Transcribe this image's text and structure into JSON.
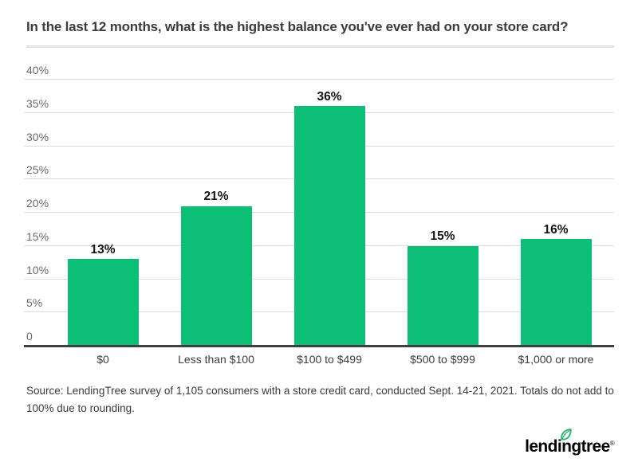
{
  "header": {
    "title": "In the last 12 months, what is the highest balance you've ever had on your store card?"
  },
  "chart_data": {
    "type": "bar",
    "title": "In the last 12 months, what is the highest balance you've ever had on your store card?",
    "categories": [
      "$0",
      "Less than $100",
      "$100 to $499",
      "$500 to $999",
      "$1,000 or more"
    ],
    "values": [
      13,
      21,
      36,
      15,
      16
    ],
    "data_labels": [
      "13%",
      "21%",
      "36%",
      "15%",
      "16%"
    ],
    "xlabel": "",
    "ylabel": "",
    "ylim": [
      0,
      40
    ],
    "yticks": [
      40,
      35,
      30,
      25,
      20,
      15,
      10,
      5,
      0
    ],
    "ytick_labels": [
      "40%",
      "35%",
      "30%",
      "25%",
      "20%",
      "15%",
      "10%",
      "5%",
      "0"
    ],
    "grid": true,
    "legend": false,
    "bar_color": "#0DBE76",
    "gridline_color": "#dcdcdc",
    "axis_color": "#3f3f3f"
  },
  "footer": {
    "source": "Source: LendingTree survey of 1,105 consumers with a store credit card, conducted Sept. 14-21, 2021. Totals do not add to 100% due to rounding."
  },
  "logo": {
    "text": "lendingtree",
    "registered": "®",
    "navy": "#12243F",
    "green": "#2BB673"
  }
}
